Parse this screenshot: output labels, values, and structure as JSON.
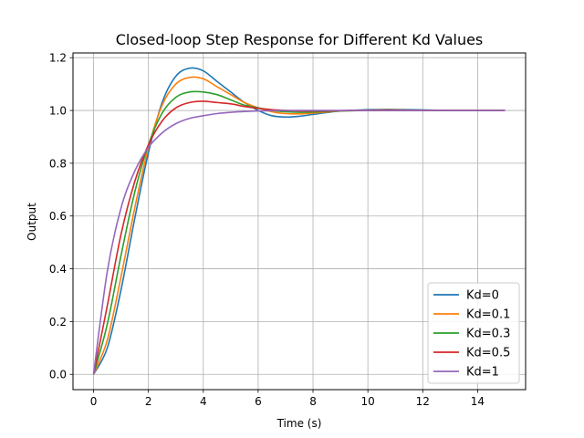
{
  "chart_data": {
    "type": "line",
    "title": "Closed-loop Step Response for Different Kd Values",
    "xlabel": "Time (s)",
    "ylabel": "Output",
    "xlim": [
      -0.75,
      15.75
    ],
    "ylim": [
      -0.058,
      1.218
    ],
    "xticks": [
      0,
      2,
      4,
      6,
      8,
      10,
      12,
      14
    ],
    "yticks": [
      0.0,
      0.2,
      0.4,
      0.6,
      0.8,
      1.0,
      1.2
    ],
    "grid": true,
    "legend_position": "lower right",
    "x": [
      0,
      0.5,
      1,
      1.5,
      2,
      2.5,
      3,
      3.5,
      4,
      4.5,
      5,
      5.5,
      6,
      6.5,
      7,
      7.5,
      8,
      8.5,
      9,
      9.5,
      10,
      10.5,
      11,
      11.5,
      12,
      12.5,
      13,
      13.5,
      14,
      14.5,
      15
    ],
    "series": [
      {
        "name": "Kd=0",
        "color": "#1f77b4",
        "values": [
          0.0,
          0.1,
          0.32,
          0.59,
          0.84,
          1.03,
          1.13,
          1.16,
          1.15,
          1.11,
          1.07,
          1.03,
          1.0,
          0.98,
          0.975,
          0.978,
          0.985,
          0.992,
          0.998,
          1.001,
          1.003,
          1.004,
          1.004,
          1.003,
          1.002,
          1.001,
          1.0,
          1.0,
          1.0,
          1.0,
          1.0
        ]
      },
      {
        "name": "Kd=0.1",
        "color": "#ff7f0e",
        "values": [
          0.0,
          0.13,
          0.37,
          0.63,
          0.86,
          1.02,
          1.1,
          1.125,
          1.12,
          1.09,
          1.06,
          1.03,
          1.01,
          0.995,
          0.988,
          0.987,
          0.99,
          0.994,
          0.998,
          1.0,
          1.001,
          1.002,
          1.002,
          1.001,
          1.001,
          1.0,
          1.0,
          1.0,
          1.0,
          1.0,
          1.0
        ]
      },
      {
        "name": "Kd=0.3",
        "color": "#2ca02c",
        "values": [
          0.0,
          0.19,
          0.45,
          0.69,
          0.87,
          0.99,
          1.05,
          1.07,
          1.07,
          1.06,
          1.04,
          1.02,
          1.01,
          1.0,
          0.995,
          0.993,
          0.994,
          0.996,
          0.998,
          0.999,
          1.0,
          1.0,
          1.0,
          1.0,
          1.0,
          1.0,
          1.0,
          1.0,
          1.0,
          1.0,
          1.0
        ]
      },
      {
        "name": "Kd=0.5",
        "color": "#d62728",
        "values": [
          0.0,
          0.26,
          0.53,
          0.73,
          0.87,
          0.96,
          1.01,
          1.03,
          1.035,
          1.03,
          1.025,
          1.015,
          1.008,
          1.003,
          1.0,
          0.998,
          0.998,
          0.998,
          0.999,
          1.0,
          1.0,
          1.0,
          1.0,
          1.0,
          1.0,
          1.0,
          1.0,
          1.0,
          1.0,
          1.0,
          1.0
        ]
      },
      {
        "name": "Kd=1",
        "color": "#9467bd",
        "values": [
          0.0,
          0.39,
          0.63,
          0.77,
          0.86,
          0.915,
          0.95,
          0.97,
          0.98,
          0.988,
          0.993,
          0.996,
          0.998,
          0.999,
          1.0,
          1.0,
          1.0,
          1.0,
          1.0,
          1.0,
          1.0,
          1.0,
          1.0,
          1.0,
          1.0,
          1.0,
          1.0,
          1.0,
          1.0,
          1.0,
          1.0
        ]
      }
    ]
  }
}
